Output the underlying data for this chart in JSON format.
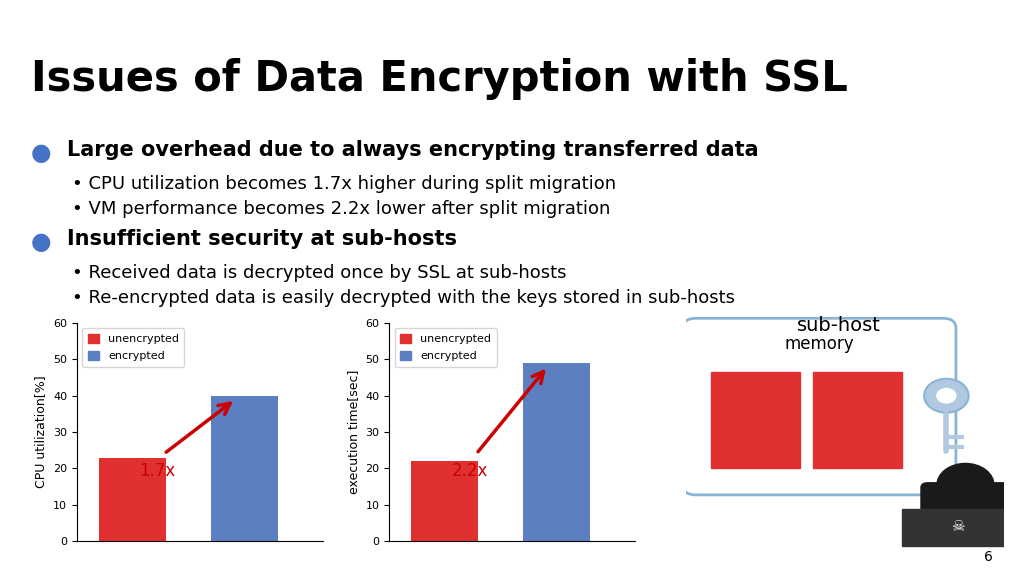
{
  "title": "Issues of Data Encryption with SSL",
  "title_fontsize": 30,
  "title_fontweight": "bold",
  "bg_color": "#ffffff",
  "separator_color": "#4472c4",
  "bullet_color": "#4472c4",
  "bullet1_main": "Large overhead due to always encrypting transferred data",
  "bullet1_sub1": "CPU utilization becomes 1.7x higher during split migration",
  "bullet1_sub2": "VM performance becomes 2.2x lower after split migration",
  "bullet2_main": "Insufficient security at sub-hosts",
  "bullet2_sub1": "Received data is decrypted once by SSL at sub-hosts",
  "bullet2_sub2": "Re-encrypted data is easily decrypted with the keys stored in sub-hosts",
  "chart1_ylabel": "CPU utilization[%]",
  "chart1_ylim": [
    0,
    60
  ],
  "chart1_yticks": [
    0,
    10,
    20,
    30,
    40,
    50,
    60
  ],
  "chart1_values": [
    23,
    40
  ],
  "chart1_annotation": "1.7x",
  "chart2_ylabel": "execution time[sec]",
  "chart2_ylim": [
    0,
    60
  ],
  "chart2_yticks": [
    0,
    10,
    20,
    30,
    40,
    50,
    60
  ],
  "chart2_values": [
    22,
    49
  ],
  "chart2_annotation": "2.2x",
  "bar_colors": [
    "#e03030",
    "#5b7fc0"
  ],
  "legend_labels": [
    "unencrypted",
    "encrypted"
  ],
  "arrow_color": "#cc0000",
  "annotation_color": "#cc0000",
  "annotation_fontsize": 12,
  "subhost_label": "sub-host",
  "memory_label": "memory",
  "page_number": "6",
  "main_fontsize": 15,
  "sub_fontsize": 13
}
